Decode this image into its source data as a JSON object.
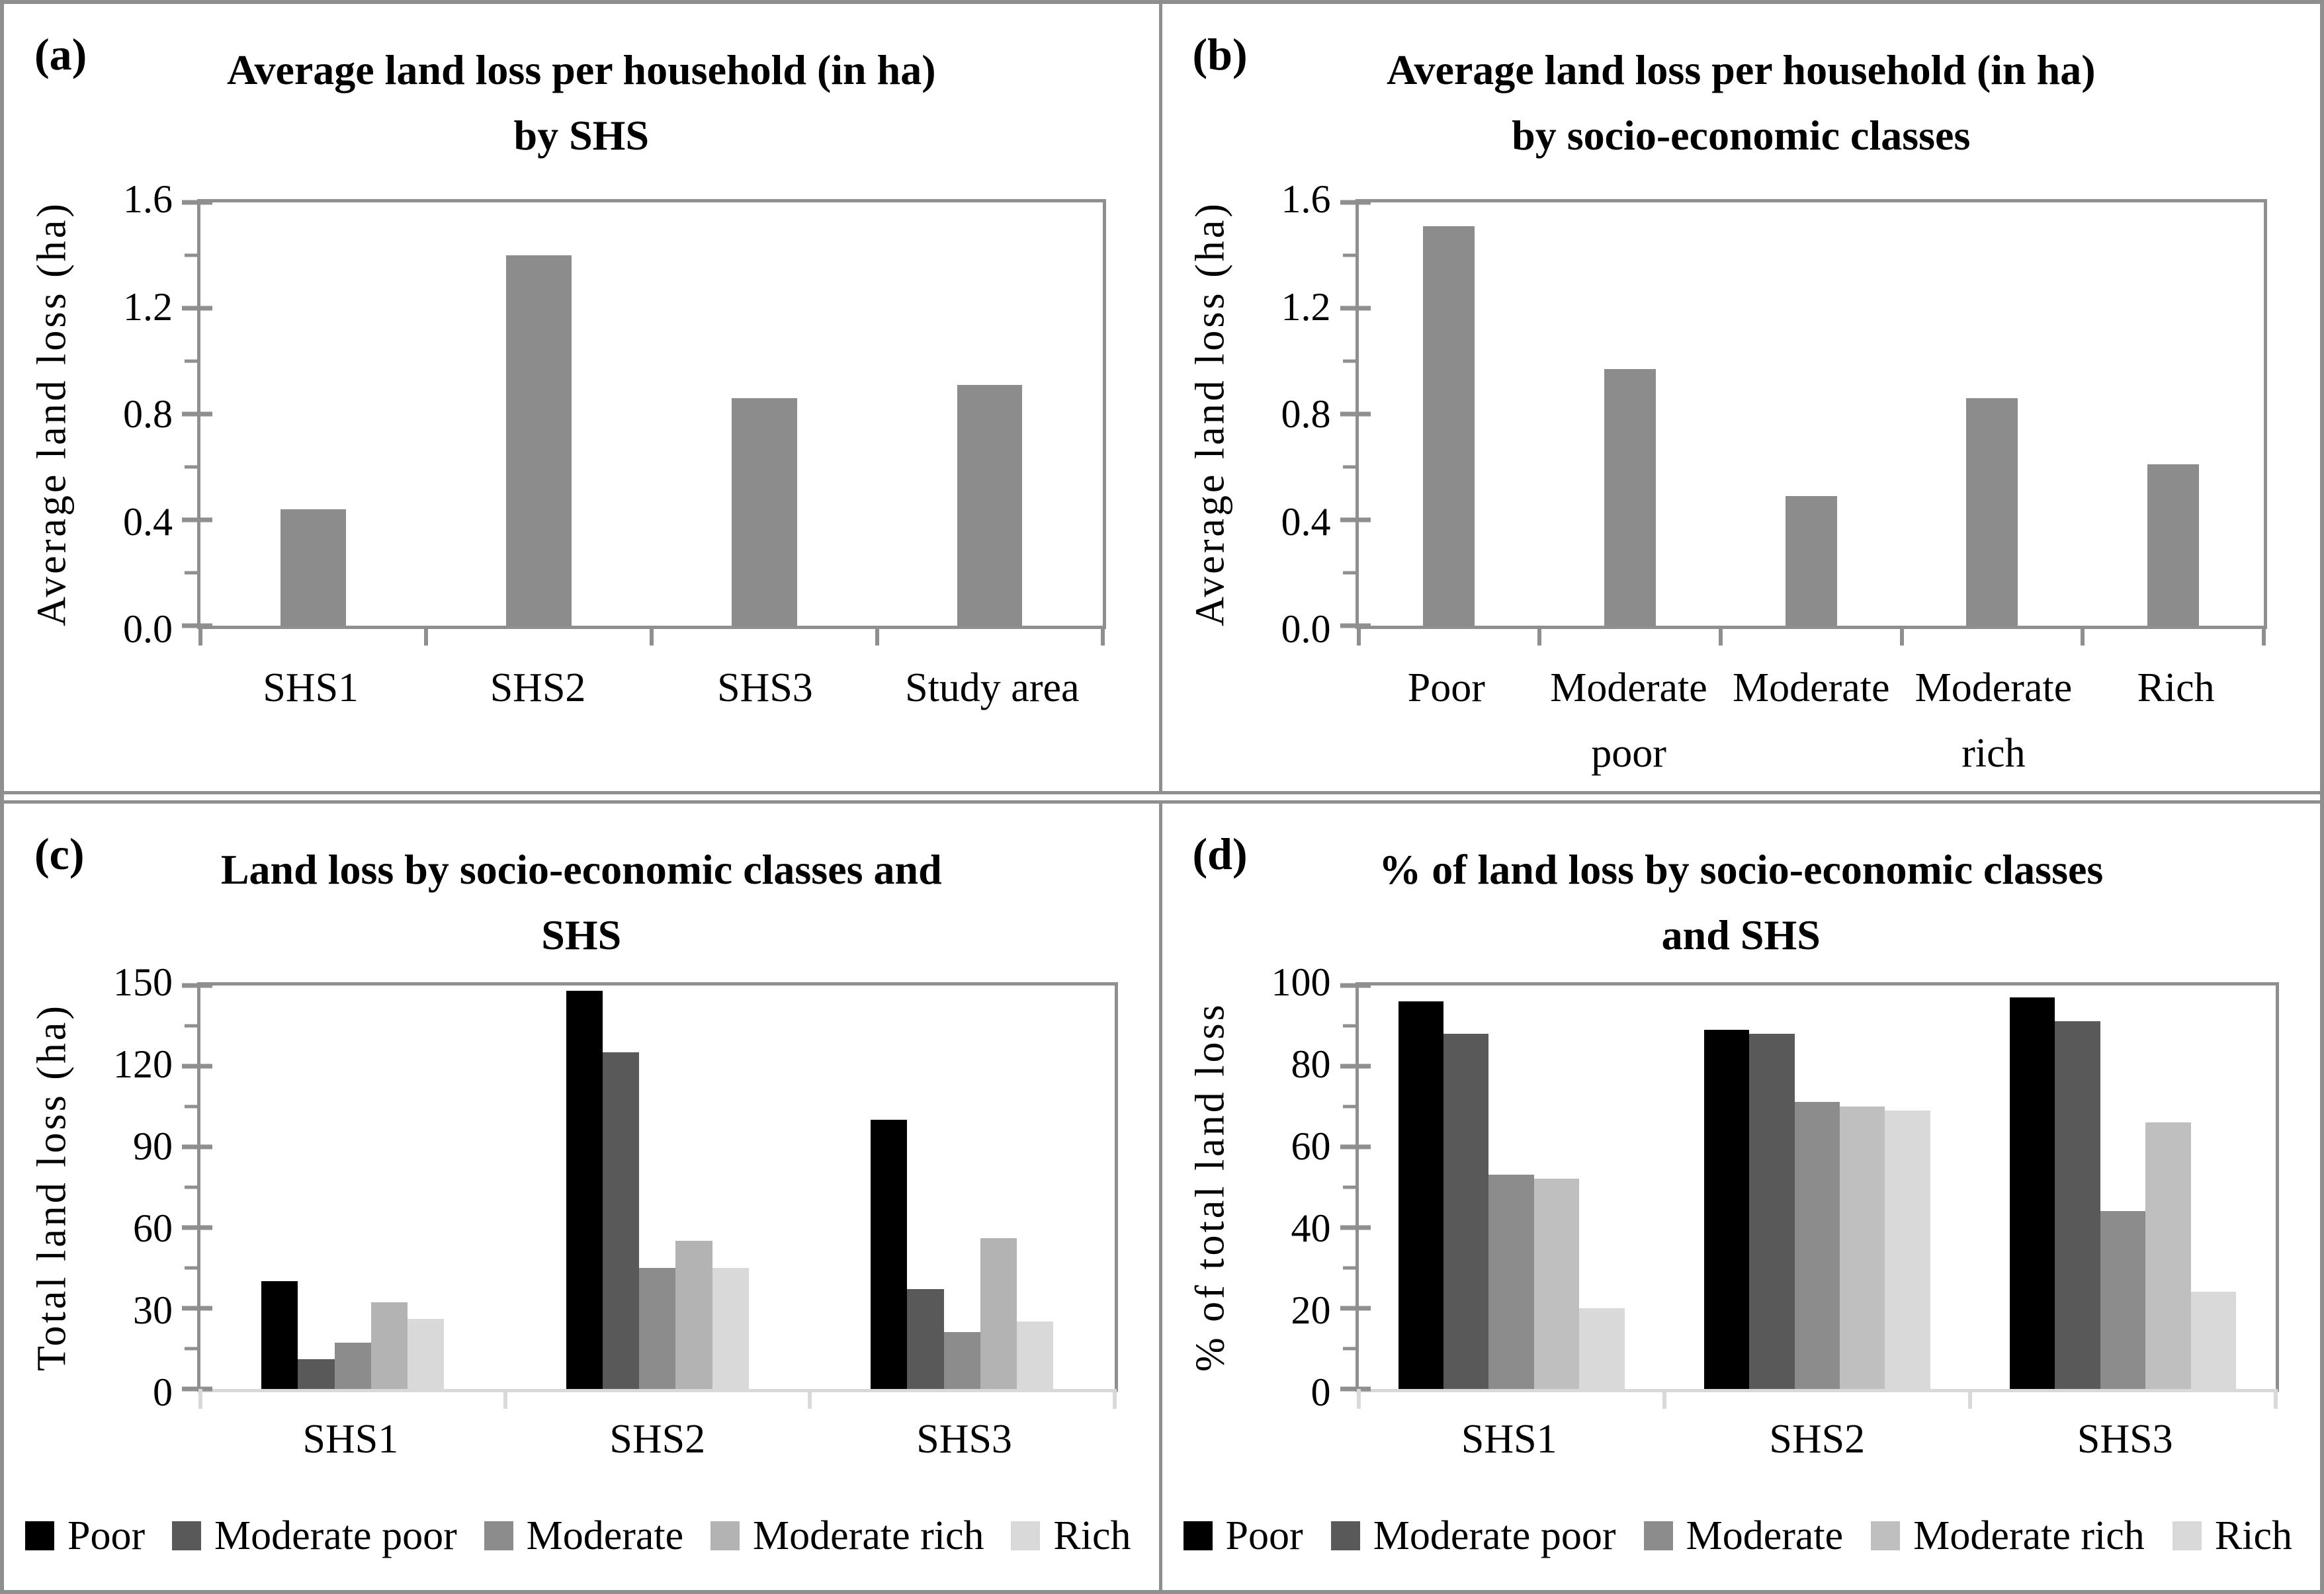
{
  "style": {
    "background": "#ffffff",
    "figure_border": "#8f8f8f",
    "axis_color": "#8f8f8f",
    "light_axis_color": "#d9d9d9",
    "single_bar_color": "#8c8c8c"
  },
  "legend_labels": [
    "Poor",
    "Moderate poor",
    "Moderate",
    "Moderate rich",
    "Rich"
  ],
  "chart_data": [
    {
      "id": "a",
      "type": "bar",
      "panel_label": "(a)",
      "title": "Average land loss per household (in ha) by SHS",
      "ylabel": "Average land loss (ha)",
      "categories": [
        "SHS1",
        "SHS2",
        "SHS3",
        "Study area"
      ],
      "values": [
        0.44,
        1.4,
        0.86,
        0.91
      ],
      "ylim": [
        0,
        1.6
      ],
      "ytick_labels": [
        "0.0",
        "0.4",
        "0.8",
        "1.2",
        "1.6"
      ],
      "grid": false,
      "legend_position": "none",
      "bar_color": "#8c8c8c",
      "baseline_color": "#8f8f8f",
      "xtick_color": "#8f8f8f",
      "bar_frac": 0.29
    },
    {
      "id": "b",
      "type": "bar",
      "panel_label": "(b)",
      "title": "Average land loss per household (in ha) by socio-economic classes",
      "ylabel": "Average land loss (ha)",
      "categories": [
        "Poor",
        "Moderate poor",
        "Moderate",
        "Moderate rich",
        "Rich"
      ],
      "values": [
        1.51,
        0.97,
        0.49,
        0.86,
        0.61
      ],
      "ylim": [
        0,
        1.6
      ],
      "ytick_labels": [
        "0.0",
        "0.4",
        "0.8",
        "1.2",
        "1.6"
      ],
      "grid": false,
      "legend_position": "none",
      "bar_color": "#8c8c8c",
      "baseline_color": "#8f8f8f",
      "xtick_color": "#8f8f8f",
      "bar_frac": 0.285
    },
    {
      "id": "c",
      "type": "bar",
      "panel_label": "(c)",
      "title": "Land loss by socio-economic classes and SHS",
      "ylabel": "Total land loss (ha)",
      "categories": [
        "SHS1",
        "SHS2",
        "SHS3"
      ],
      "series": [
        {
          "name": "Poor",
          "color": "#000000",
          "values": [
            40,
            148,
            100
          ]
        },
        {
          "name": "Moderate poor",
          "color": "#595959",
          "values": [
            11,
            125,
            37
          ]
        },
        {
          "name": "Moderate",
          "color": "#8c8c8c",
          "values": [
            17,
            45,
            21
          ]
        },
        {
          "name": "Moderate rich",
          "color": "#b3b3b3",
          "values": [
            32,
            55,
            56
          ]
        },
        {
          "name": "Rich",
          "color": "#d9d9d9",
          "values": [
            26,
            45,
            25
          ]
        }
      ],
      "ylim": [
        0,
        150
      ],
      "ytick_labels": [
        "0",
        "30",
        "60",
        "90",
        "120",
        "150"
      ],
      "grid": false,
      "legend_position": "bottom",
      "baseline_color": "#d9d9d9",
      "xtick_color": "#d9d9d9",
      "cluster_frac": 0.6
    },
    {
      "id": "d",
      "type": "bar",
      "panel_label": "(d)",
      "title": "% of land loss by socio-economic classes and SHS",
      "ylabel": "% of total land loss",
      "categories": [
        "SHS1",
        "SHS2",
        "SHS3"
      ],
      "series": [
        {
          "name": "Poor",
          "color": "#000000",
          "values": [
            96,
            89,
            97
          ]
        },
        {
          "name": "Moderate poor",
          "color": "#595959",
          "values": [
            88,
            88,
            91
          ]
        },
        {
          "name": "Moderate",
          "color": "#8c8c8c",
          "values": [
            53,
            71,
            44
          ]
        },
        {
          "name": "Moderate rich",
          "color": "#bfbfbf",
          "values": [
            52,
            70,
            66
          ]
        },
        {
          "name": "Rich",
          "color": "#d9d9d9",
          "values": [
            20,
            69,
            24
          ]
        }
      ],
      "ylim": [
        0,
        100
      ],
      "ytick_labels": [
        "0",
        "20",
        "40",
        "60",
        "80",
        "100"
      ],
      "grid": false,
      "legend_position": "bottom",
      "baseline_color": "#d9d9d9",
      "xtick_color": "#d9d9d9",
      "cluster_frac": 0.74
    }
  ]
}
